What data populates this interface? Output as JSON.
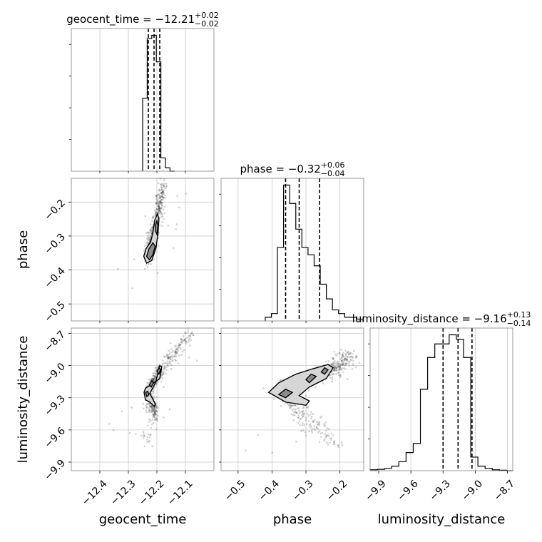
{
  "chart_data": {
    "type": "corner",
    "parameters": [
      "geocent_time",
      "phase",
      "luminosity_distance"
    ],
    "axis_labels": {
      "x": [
        "geocent_time",
        "phase",
        "luminosity_distance"
      ],
      "y": [
        "phase",
        "luminosity_distance"
      ]
    },
    "titles": [
      {
        "param": "geocent_time",
        "prefix": "geocent_time = −12.21",
        "plus": "+0.02",
        "minus": "−0.02"
      },
      {
        "param": "phase",
        "prefix": "phase = −0.32",
        "plus": "+0.06",
        "minus": "−0.04"
      },
      {
        "param": "luminosity_distance",
        "prefix": "luminosity_distance = −9.16",
        "plus": "+0.13",
        "minus": "−0.14"
      }
    ],
    "ranges": {
      "geocent_time": [
        -12.5,
        -12.0
      ],
      "phase": [
        -0.55,
        -0.13
      ],
      "luminosity_distance": [
        -9.98,
        -8.65
      ]
    },
    "ticks": {
      "geocent_time": [
        {
          "v": -12.4,
          "label": "−12.4"
        },
        {
          "v": -12.3,
          "label": "−12.3"
        },
        {
          "v": -12.2,
          "label": "−12.2"
        },
        {
          "v": -12.1,
          "label": "−12.1"
        }
      ],
      "phase": [
        {
          "v": -0.5,
          "label": "−0.5"
        },
        {
          "v": -0.4,
          "label": "−0.4"
        },
        {
          "v": -0.3,
          "label": "−0.3"
        },
        {
          "v": -0.2,
          "label": "−0.2"
        }
      ],
      "luminosity_distance": [
        {
          "v": -9.9,
          "label": "−9.9"
        },
        {
          "v": -9.6,
          "label": "−9.6"
        },
        {
          "v": -9.3,
          "label": "−9.3"
        },
        {
          "v": -9.0,
          "label": "−9.0"
        },
        {
          "v": -8.7,
          "label": "−8.7"
        }
      ]
    },
    "histograms": {
      "geocent_time": {
        "bin_edges": [
          -12.25,
          -12.234,
          -12.218,
          -12.202,
          -12.186,
          -12.17,
          -12.154,
          -12.138
        ],
        "counts": [
          22,
          40,
          41,
          33,
          4,
          1,
          0
        ],
        "quantiles": [
          -12.23,
          -12.21,
          -12.19
        ]
      },
      "phase": {
        "bin_edges": [
          -0.42,
          -0.402,
          -0.384,
          -0.366,
          -0.348,
          -0.33,
          -0.312,
          -0.294,
          -0.276,
          -0.258,
          -0.24,
          -0.222,
          -0.204,
          -0.186,
          -0.168,
          -0.15,
          -0.132
        ],
        "counts": [
          1,
          2,
          20,
          37,
          32,
          25,
          20,
          18,
          15,
          10,
          6,
          3,
          2,
          1,
          1,
          0.5
        ],
        "quantiles": [
          -0.36,
          -0.32,
          -0.26
        ]
      },
      "luminosity_distance": {
        "bin_edges": [
          -9.98,
          -9.913,
          -9.846,
          -9.779,
          -9.712,
          -9.645,
          -9.578,
          -9.511,
          -9.444,
          -9.377,
          -9.31,
          -9.243,
          -9.176,
          -9.109,
          -9.042,
          -8.975,
          -8.908,
          -8.841,
          -8.774,
          -8.707,
          -8.65
        ],
        "counts": [
          0.2,
          0.3,
          0.5,
          1,
          2,
          4,
          6,
          18,
          25,
          28,
          28,
          30,
          29,
          25,
          3,
          1,
          0.5,
          0.2,
          0.1,
          0
        ],
        "quantiles": [
          -9.3,
          -9.16,
          -9.03
        ]
      }
    },
    "contour_paths": {
      "phase_vs_geocent_time": [
        {
          "level": "outer",
          "shade": "#d6d6d6",
          "points": [
            [
              -12.246,
              -0.36
            ],
            [
              -12.236,
              -0.38
            ],
            [
              -12.218,
              -0.372
            ],
            [
              -12.203,
              -0.335
            ],
            [
              -12.196,
              -0.29
            ],
            [
              -12.193,
              -0.25
            ],
            [
              -12.198,
              -0.235
            ],
            [
              -12.207,
              -0.252
            ],
            [
              -12.214,
              -0.29
            ],
            [
              -12.222,
              -0.318
            ],
            [
              -12.238,
              -0.337
            ]
          ]
        },
        {
          "level": "inner",
          "shade": "#8c8c8c",
          "points": [
            [
              -12.236,
              -0.36
            ],
            [
              -12.226,
              -0.37
            ],
            [
              -12.214,
              -0.355
            ],
            [
              -12.206,
              -0.33
            ],
            [
              -12.214,
              -0.32
            ],
            [
              -12.228,
              -0.338
            ]
          ]
        },
        {
          "level": "inner",
          "shade": "#8c8c8c",
          "points": [
            [
              -12.205,
              -0.285
            ],
            [
              -12.2,
              -0.295
            ],
            [
              -12.196,
              -0.27
            ],
            [
              -12.2,
              -0.255
            ],
            [
              -12.205,
              -0.268
            ]
          ]
        }
      ],
      "luminosity_distance_vs_geocent_time": [
        {
          "level": "outer",
          "shade": "#d6d6d6",
          "points": [
            [
              -12.245,
              -9.25
            ],
            [
              -12.24,
              -9.32
            ],
            [
              -12.225,
              -9.34
            ],
            [
              -12.21,
              -9.38
            ],
            [
              -12.205,
              -9.36
            ],
            [
              -12.225,
              -9.26
            ],
            [
              -12.205,
              -9.16
            ],
            [
              -12.19,
              -9.0
            ],
            [
              -12.183,
              -9.01
            ],
            [
              -12.19,
              -9.12
            ],
            [
              -12.22,
              -9.18
            ],
            [
              -12.24,
              -9.21
            ]
          ]
        },
        {
          "level": "inner",
          "shade": "#8c8c8c",
          "points": [
            [
              -12.24,
              -9.25
            ],
            [
              -12.235,
              -9.29
            ],
            [
              -12.228,
              -9.27
            ],
            [
              -12.232,
              -9.24
            ]
          ]
        },
        {
          "level": "inner",
          "shade": "#8c8c8c",
          "points": [
            [
              -12.226,
              -9.18
            ],
            [
              -12.22,
              -9.2
            ],
            [
              -12.212,
              -9.16
            ],
            [
              -12.218,
              -9.14
            ]
          ]
        },
        {
          "level": "inner",
          "shade": "#8c8c8c",
          "points": [
            [
              -12.2,
              -9.05
            ],
            [
              -12.193,
              -9.08
            ],
            [
              -12.187,
              -9.04
            ],
            [
              -12.192,
              -9.02
            ]
          ]
        }
      ],
      "luminosity_distance_vs_phase": [
        {
          "level": "outer",
          "shade": "#d6d6d6",
          "points": [
            [
              -0.41,
              -9.25
            ],
            [
              -0.36,
              -9.34
            ],
            [
              -0.3,
              -9.37
            ],
            [
              -0.29,
              -9.33
            ],
            [
              -0.32,
              -9.28
            ],
            [
              -0.29,
              -9.2
            ],
            [
              -0.24,
              -9.12
            ],
            [
              -0.22,
              -9.02
            ],
            [
              -0.235,
              -8.99
            ],
            [
              -0.28,
              -9.03
            ],
            [
              -0.33,
              -9.08
            ],
            [
              -0.38,
              -9.16
            ]
          ]
        },
        {
          "level": "inner",
          "shade": "#8c8c8c",
          "points": [
            [
              -0.38,
              -9.27
            ],
            [
              -0.36,
              -9.3
            ],
            [
              -0.34,
              -9.25
            ],
            [
              -0.36,
              -9.22
            ]
          ]
        },
        {
          "level": "inner",
          "shade": "#8c8c8c",
          "points": [
            [
              -0.3,
              -9.13
            ],
            [
              -0.29,
              -9.16
            ],
            [
              -0.27,
              -9.1
            ],
            [
              -0.285,
              -9.08
            ]
          ]
        },
        {
          "level": "inner",
          "shade": "#8c8c8c",
          "points": [
            [
              -0.255,
              -9.06
            ],
            [
              -0.245,
              -9.08
            ],
            [
              -0.235,
              -9.04
            ],
            [
              -0.245,
              -9.02
            ]
          ]
        }
      ]
    },
    "grid": true
  }
}
